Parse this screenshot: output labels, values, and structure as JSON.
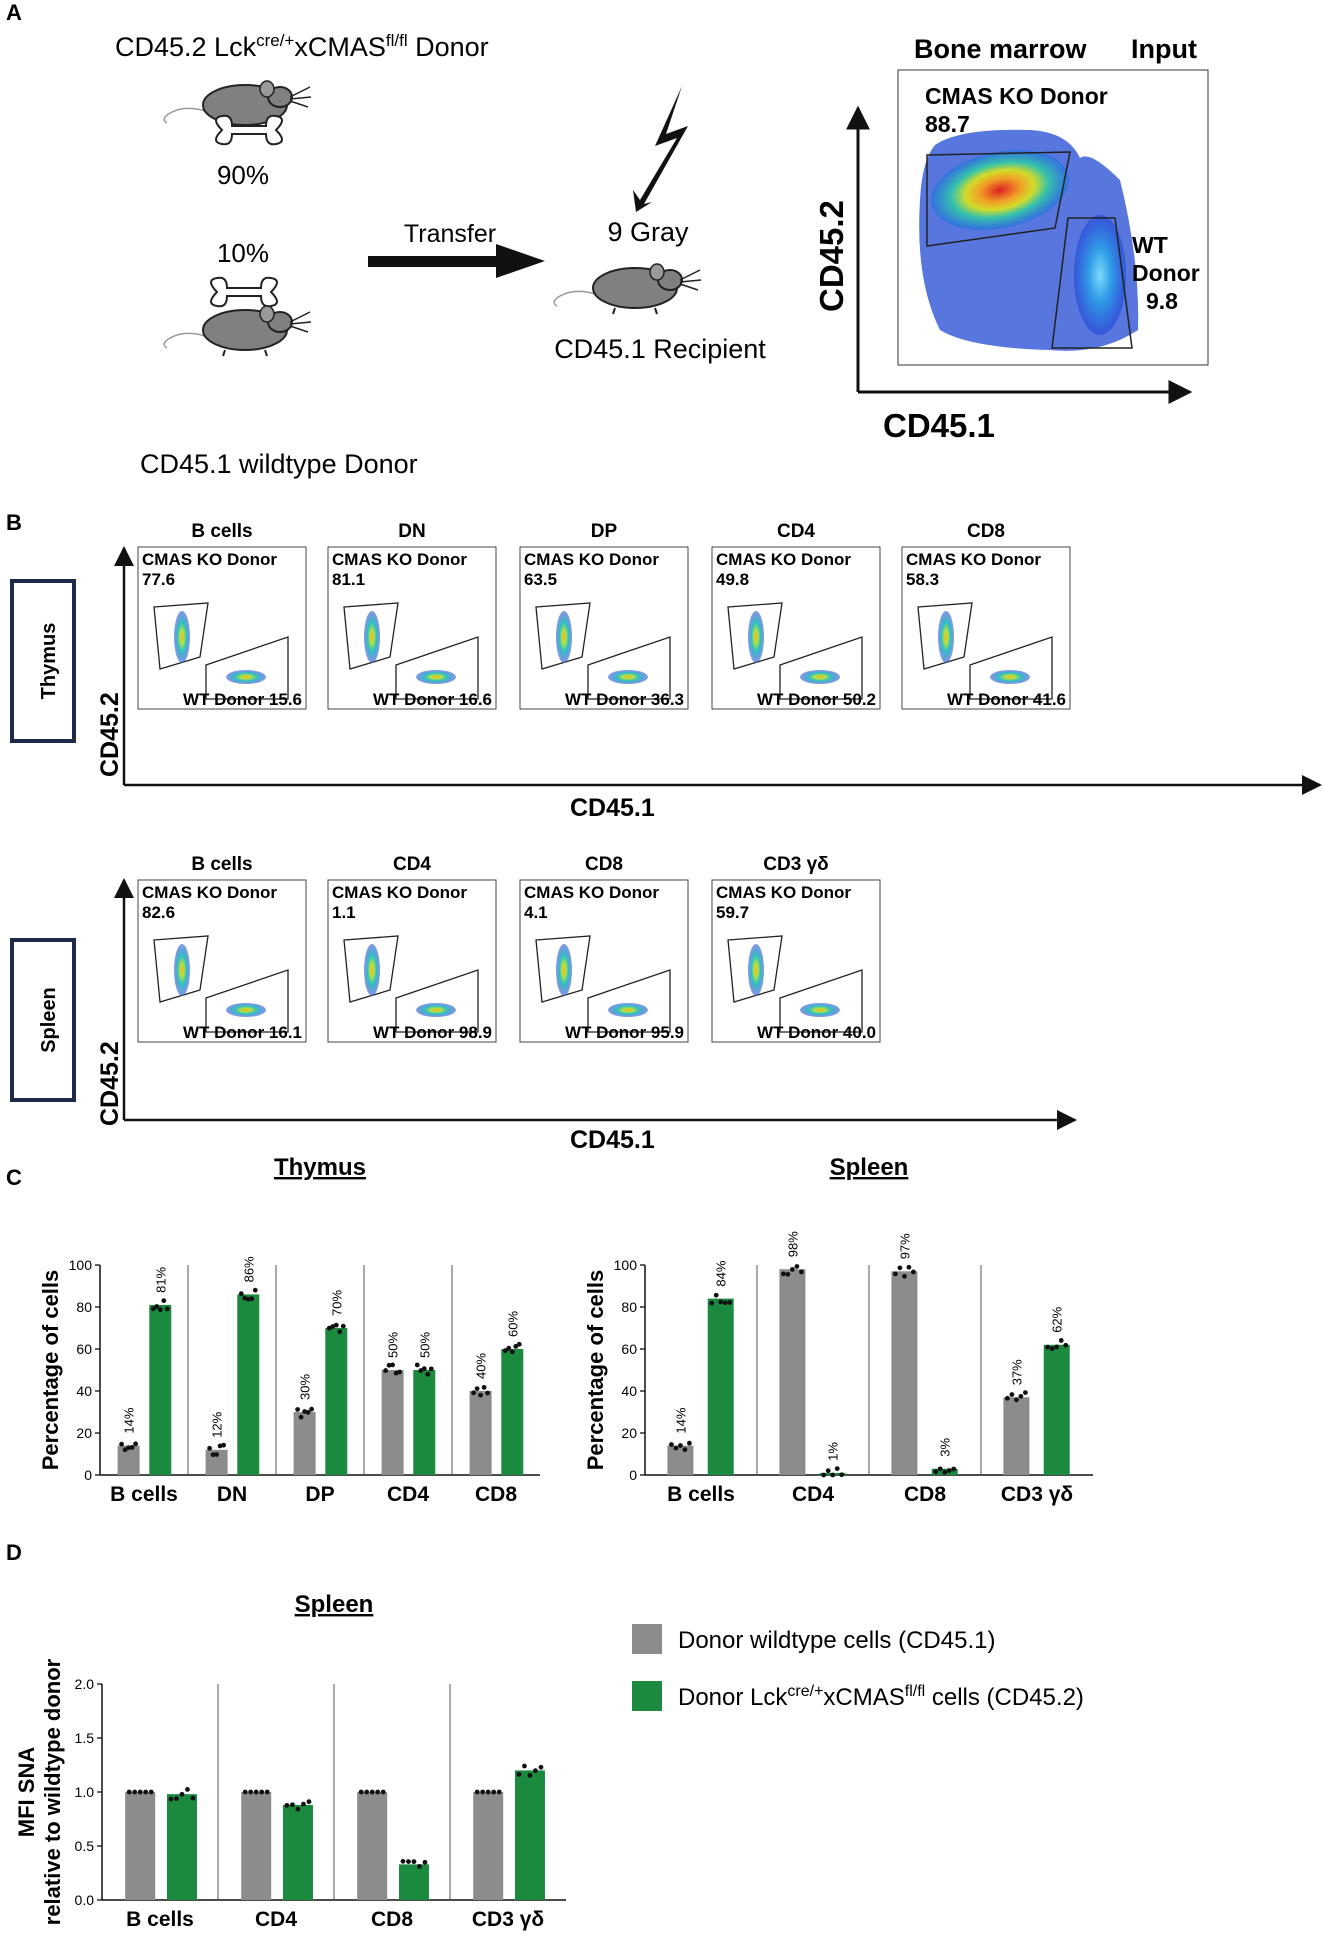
{
  "panelA": {
    "label": "A",
    "donorTop": {
      "prefix": "CD45.2 Lck",
      "sup1": "cre/+",
      "mid": "xCMAS",
      "sup2": "fl/fl",
      "suffix": " Donor"
    },
    "pct90": "90%",
    "pct10": "10%",
    "donorBottom": "CD45.1 wildtype Donor",
    "transfer": "Transfer",
    "gray": "9 Gray",
    "recipient": "CD45.1 Recipient",
    "flowTitleLeft": "Bone marrow",
    "flowTitleRight": "Input",
    "koGate": "CMAS KO Donor",
    "koValue": "88.7",
    "wtGateLine1": "WT",
    "wtGateLine2": "Donor",
    "wtValue": "9.8",
    "xAxis": "CD45.1",
    "yAxis": "CD45.2"
  },
  "panelB": {
    "label": "B",
    "ko": "CMAS KO Donor",
    "wtPrefix": "WT Donor",
    "xAxis": "CD45.1",
    "yAxis": "CD45.2",
    "thymus": {
      "organ": "Thymus",
      "plots": [
        {
          "title": "B cells",
          "ko": "77.6",
          "wt": "15.6"
        },
        {
          "title": "DN",
          "ko": "81.1",
          "wt": "16.6"
        },
        {
          "title": "DP",
          "ko": "63.5",
          "wt": "36.3"
        },
        {
          "title": "CD4",
          "ko": "49.8",
          "wt": "50.2"
        },
        {
          "title": "CD8",
          "ko": "58.3",
          "wt": "41.6"
        }
      ]
    },
    "spleen": {
      "organ": "Spleen",
      "plots": [
        {
          "title": "B cells",
          "ko": "82.6",
          "wt": "16.1"
        },
        {
          "title": "CD4",
          "ko": "1.1",
          "wt": "98.9"
        },
        {
          "title": "CD8",
          "ko": "4.1",
          "wt": "95.9"
        },
        {
          "title": "CD3 γδ",
          "ko": "59.7",
          "wt": "40.0"
        }
      ]
    }
  },
  "panelC": {
    "label": "C"
  },
  "panelD": {
    "label": "D"
  },
  "legend": {
    "grey": "Donor wildtype cells (CD45.1)",
    "greenPrefix": "Donor Lck",
    "greenSup1": "cre/+",
    "greenMid": "xCMAS",
    "greenSup2": "fl/fl",
    "greenSuffix": " cells (CD45.2)"
  },
  "colors": {
    "grey": "#8c8c8c",
    "green": "#1b8a3e",
    "navy": "#1f2a4a"
  },
  "chart_data": [
    {
      "type": "bar",
      "title": "Thymus",
      "ylabel": "Percentage of cells",
      "ylim": [
        0,
        100
      ],
      "yticks": [
        "0",
        "20",
        "40",
        "60",
        "80",
        "100"
      ],
      "categories": [
        "B cells",
        "DN",
        "DP",
        "CD4",
        "CD8"
      ],
      "series": [
        {
          "name": "Donor wildtype cells (CD45.1)",
          "values": [
            14,
            12,
            30,
            50,
            40
          ],
          "labels": [
            "14%",
            "12%",
            "30%",
            "50%",
            "40%"
          ]
        },
        {
          "name": "Donor Lckcre/+xCMASfl/fl cells (CD45.2)",
          "values": [
            81,
            86,
            70,
            50,
            60
          ],
          "labels": [
            "81%",
            "86%",
            "70%",
            "50%",
            "60%"
          ]
        }
      ]
    },
    {
      "type": "bar",
      "title": "Spleen",
      "ylabel": "Percentage of cells",
      "ylim": [
        0,
        100
      ],
      "yticks": [
        "0",
        "20",
        "40",
        "60",
        "80",
        "100"
      ],
      "categories": [
        "B cells",
        "CD4",
        "CD8",
        "CD3 γδ"
      ],
      "series": [
        {
          "name": "Donor wildtype cells (CD45.1)",
          "values": [
            14,
            98,
            97,
            37
          ],
          "labels": [
            "14%",
            "98%",
            "97%",
            "37%"
          ]
        },
        {
          "name": "Donor Lckcre/+xCMASfl/fl cells (CD45.2)",
          "values": [
            84,
            1,
            3,
            62
          ],
          "labels": [
            "84%",
            "1%",
            "3%",
            "62%"
          ]
        }
      ]
    },
    {
      "type": "bar",
      "title": "Spleen",
      "ylabel": "MFI SNA",
      "ylabel2": "relative to wildtype donor",
      "ylim": [
        0,
        2.0
      ],
      "yticks": [
        "0.0",
        "0.5",
        "1.0",
        "1.5",
        "2.0"
      ],
      "categories": [
        "B cells",
        "CD4",
        "CD8",
        "CD3 γδ"
      ],
      "series": [
        {
          "name": "Donor wildtype cells (CD45.1)",
          "values": [
            1.0,
            1.0,
            1.0,
            1.0
          ]
        },
        {
          "name": "Donor Lckcre/+xCMASfl/fl cells (CD45.2)",
          "values": [
            0.98,
            0.88,
            0.33,
            1.2
          ]
        }
      ]
    }
  ]
}
